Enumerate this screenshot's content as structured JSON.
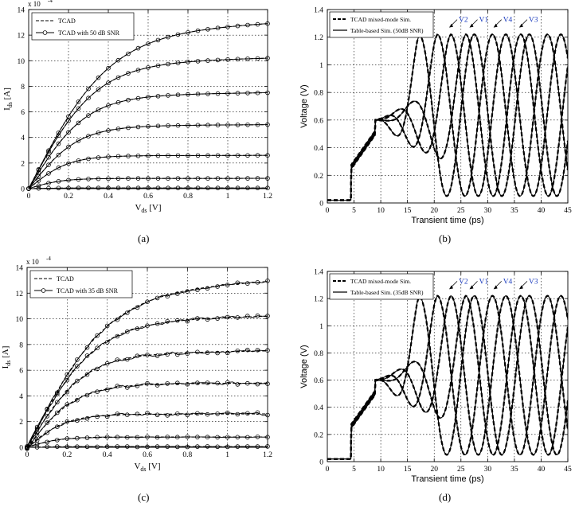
{
  "chart_data": [
    {
      "panel": "a",
      "caption": "(a)",
      "type": "line",
      "exponent_label": "x 10",
      "exponent_power": "-4",
      "xlabel_main": "V",
      "xlabel_sub": "ds",
      "xlabel_unit": " [V]",
      "ylabel_main": "I",
      "ylabel_sub": "ds",
      "ylabel_unit": " [A]",
      "xlim": [
        0,
        1.2
      ],
      "ylim": [
        0,
        14
      ],
      "xticks": [
        "0",
        "0.2",
        "0.4",
        "0.6",
        "0.8",
        "1",
        "1.2"
      ],
      "yticks": [
        "0",
        "2",
        "4",
        "6",
        "8",
        "10",
        "12",
        "14"
      ],
      "grid": true,
      "legend_position": "top-left",
      "legend": [
        "TCAD",
        "TCAD with 50 dB SNR"
      ],
      "curves": [
        {
          "Isat": 12.9,
          "k": 5.0,
          "m": 0.75
        },
        {
          "Isat": 10.2,
          "k": 6.0,
          "m": 0.45
        },
        {
          "Isat": 7.5,
          "k": 7.0,
          "m": 0.35
        },
        {
          "Isat": 5.0,
          "k": 8.0,
          "m": 0.22
        },
        {
          "Isat": 2.6,
          "k": 10.0,
          "m": 0.12
        },
        {
          "Isat": 0.8,
          "k": 12.0,
          "m": 0.05
        },
        {
          "Isat": 0.05,
          "k": 15.0,
          "m": 0.0
        }
      ],
      "noise_amp": 0.0
    },
    {
      "panel": "b",
      "caption": "(b)",
      "type": "line",
      "xlabel": "Transient time (ps)",
      "ylabel": "Voltage (V)",
      "xlim": [
        0,
        45
      ],
      "ylim": [
        0,
        1.4
      ],
      "xticks": [
        "0",
        "5",
        "10",
        "15",
        "20",
        "25",
        "30",
        "35",
        "40",
        "45"
      ],
      "yticks": [
        "0",
        "0.2",
        "0.4",
        "0.6",
        "0.8",
        "1",
        "1.2",
        "1.4"
      ],
      "grid": true,
      "legend_position": "top-left",
      "legend": [
        "TCAD mixed-mode Sim.",
        "Table-based Sim. (50dB SNR)"
      ],
      "annotations": [
        "V2",
        "V1",
        "V4",
        "V3"
      ],
      "period": 10.3,
      "vmax": 1.22,
      "vmin": 0.05,
      "phases": [
        20.6,
        17.2,
        23.1,
        25.9
      ]
    },
    {
      "panel": "c",
      "caption": "(c)",
      "type": "line",
      "exponent_label": "x 10",
      "exponent_power": "-4",
      "xlabel_main": "V",
      "xlabel_sub": "ds",
      "xlabel_unit": " [V]",
      "ylabel_main": "I",
      "ylabel_sub": "ds",
      "ylabel_unit": " [A]",
      "xlim": [
        0,
        1.2
      ],
      "ylim": [
        0,
        14
      ],
      "xticks": [
        "0",
        "0.2",
        "0.4",
        "0.6",
        "0.8",
        "1",
        "1.2"
      ],
      "yticks": [
        "0",
        "2",
        "4",
        "6",
        "8",
        "10",
        "12",
        "14"
      ],
      "grid": true,
      "legend_position": "top-left",
      "legend": [
        "TCAD",
        "TCAD with 35 dB SNR"
      ],
      "curves": [
        {
          "Isat": 12.9,
          "k": 5.0,
          "m": 0.75
        },
        {
          "Isat": 10.2,
          "k": 6.0,
          "m": 0.45
        },
        {
          "Isat": 7.5,
          "k": 7.0,
          "m": 0.35
        },
        {
          "Isat": 5.0,
          "k": 8.0,
          "m": 0.22
        },
        {
          "Isat": 2.6,
          "k": 10.0,
          "m": 0.12
        },
        {
          "Isat": 0.8,
          "k": 12.0,
          "m": 0.05
        },
        {
          "Isat": 0.05,
          "k": 15.0,
          "m": 0.0
        }
      ],
      "noise_amp": 0.22
    },
    {
      "panel": "d",
      "caption": "(d)",
      "type": "line",
      "xlabel": "Transient time (ps)",
      "ylabel": "Voltage (V)",
      "xlim": [
        0,
        45
      ],
      "ylim": [
        0,
        1.4
      ],
      "xticks": [
        "0",
        "5",
        "10",
        "15",
        "20",
        "25",
        "30",
        "35",
        "40",
        "45"
      ],
      "yticks": [
        "0",
        "0.2",
        "0.4",
        "0.6",
        "0.8",
        "1",
        "1.2",
        "1.4"
      ],
      "grid": true,
      "legend_position": "top-left",
      "legend": [
        "TCAD mixed-mode Sim.",
        "Table-based Sim. (35dB SNR)"
      ],
      "annotations": [
        "V2",
        "V1",
        "V4",
        "V3"
      ],
      "period": 10.3,
      "vmax": 1.22,
      "vmin": 0.05,
      "phases": [
        20.6,
        17.2,
        23.1,
        25.9
      ]
    }
  ],
  "colors": {
    "axis": "#000000",
    "grid": "#000000",
    "annotation": "#1f3fbf"
  }
}
